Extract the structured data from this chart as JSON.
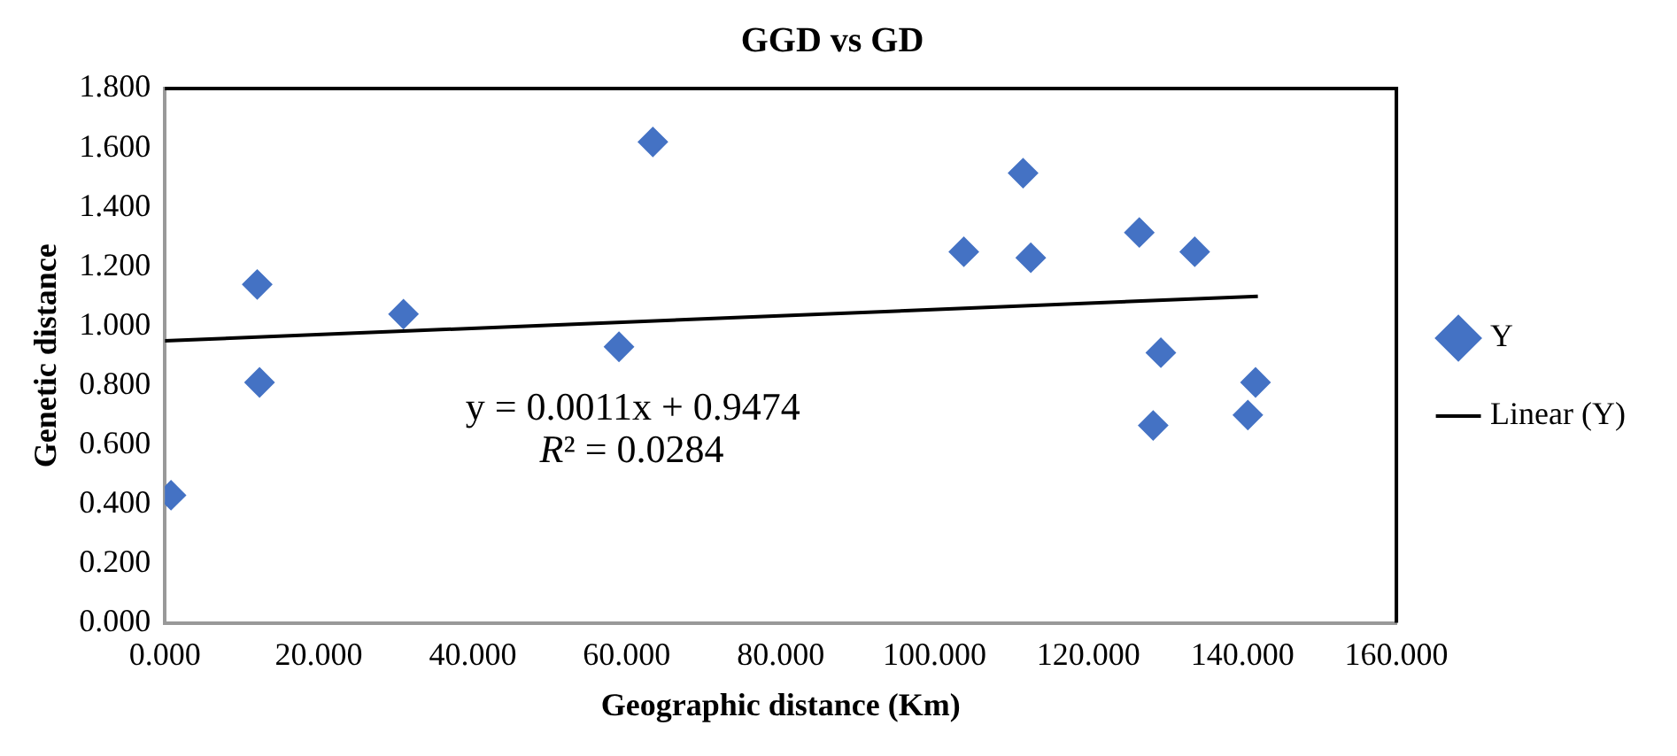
{
  "chart_data": {
    "type": "scatter",
    "title": "GGD vs GD",
    "xlabel": "Geographic distance (Km)",
    "ylabel": "Genetic distance",
    "series": [
      {
        "name": "Y",
        "type": "scatter",
        "marker": "diamond",
        "color": "#4472c4",
        "x": [
          0.8,
          12,
          12.3,
          31,
          59,
          63.4,
          103.8,
          111.5,
          112.5,
          126.6,
          133.8,
          129.4,
          128.4,
          141.7,
          140.7
        ],
        "values": [
          0.43,
          1.14,
          0.81,
          1.04,
          0.93,
          1.62,
          1.25,
          1.515,
          1.23,
          1.315,
          1.25,
          0.91,
          0.665,
          0.81,
          0.7
        ]
      },
      {
        "name": "Linear (Y)",
        "type": "line",
        "marker": "none",
        "color": "#000000",
        "x": [
          0,
          142
        ],
        "values": [
          0.95,
          1.1
        ]
      }
    ],
    "xlim": [
      0,
      160
    ],
    "ylim": [
      0,
      1.8
    ],
    "xticks": [
      {
        "value": 0,
        "label": "0.000"
      },
      {
        "value": 20,
        "label": "20.000"
      },
      {
        "value": 40,
        "label": "40.000"
      },
      {
        "value": 60,
        "label": "60.000"
      },
      {
        "value": 80,
        "label": "80.000"
      },
      {
        "value": 100,
        "label": "100.000"
      },
      {
        "value": 120,
        "label": "120.000"
      },
      {
        "value": 140,
        "label": "140.000"
      },
      {
        "value": 160,
        "label": "160.000"
      }
    ],
    "yticks": [
      {
        "value": 0,
        "label": "0.000"
      },
      {
        "value": 0.2,
        "label": "0.200"
      },
      {
        "value": 0.4,
        "label": "0.400"
      },
      {
        "value": 0.6,
        "label": "0.600"
      },
      {
        "value": 0.8,
        "label": "0.800"
      },
      {
        "value": 1,
        "label": "1.000"
      },
      {
        "value": 1.2,
        "label": "1.200"
      },
      {
        "value": 1.4,
        "label": "1.400"
      },
      {
        "value": 1.6,
        "label": "1.600"
      },
      {
        "value": 1.8,
        "label": "1.800"
      }
    ],
    "annotations": [
      "y = 0.0011x + 0.9474",
      "R² = 0.0284"
    ],
    "grid": false,
    "legend": "right",
    "line_style": "solid"
  }
}
